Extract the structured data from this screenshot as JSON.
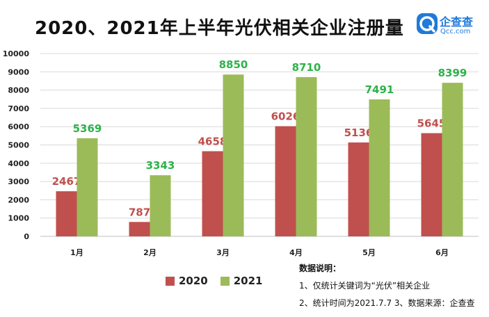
{
  "title": "2020、2021年上半年光伏相关企业注册量",
  "brand": {
    "name": "企查查",
    "domain": "Qcc.com",
    "color": "#1f7ad8"
  },
  "notes": {
    "heading": "数据说明：",
    "line1": "1、仅统计关键词为“光伏”相关企业",
    "line2": "2、统计时间为2021.7.7  3、数据来源：企查查"
  },
  "colors": {
    "series_2020": "#c0504d",
    "series_2021": "#9bbb59",
    "label_2020": "#c0504d",
    "label_2021": "#2db24a",
    "grid": "#d9d9d9"
  },
  "chart_data": {
    "type": "bar",
    "categories": [
      "1月",
      "2月",
      "3月",
      "4月",
      "5月",
      "6月"
    ],
    "series": [
      {
        "name": "2020",
        "values": [
          2467,
          787,
          4658,
          6026,
          5136,
          5645
        ]
      },
      {
        "name": "2021",
        "values": [
          5369,
          3343,
          8850,
          8710,
          7491,
          8399
        ]
      }
    ],
    "ylim": [
      0,
      10000
    ],
    "yticks": [
      0,
      1000,
      2000,
      3000,
      4000,
      5000,
      6000,
      7000,
      8000,
      9000,
      10000
    ],
    "grid": true,
    "legend": "bottom"
  }
}
